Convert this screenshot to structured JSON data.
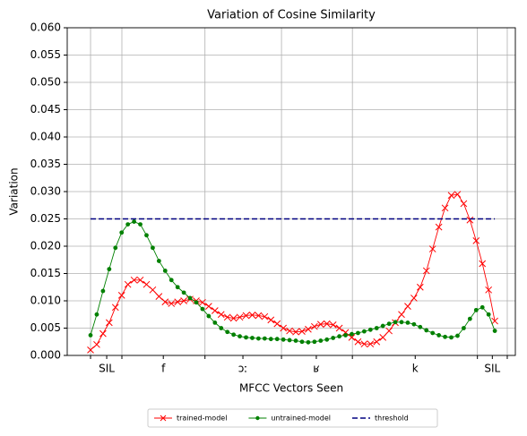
{
  "chart_data": {
    "type": "line",
    "title": "Variation of Cosine Similarity",
    "xlabel": "MFCC Vectors Seen",
    "ylabel": "Variation",
    "xlim": [
      -3.75,
      68.3
    ],
    "ylim": [
      0,
      0.06
    ],
    "xticks": [
      0,
      5.04,
      18.4,
      30.7,
      42.1,
      62.2,
      67.0
    ],
    "xlabels": [
      {
        "value": 2.6,
        "label": "SIL"
      },
      {
        "value": 11.7,
        "label": "f"
      },
      {
        "value": 24.5,
        "label": "ɔː"
      },
      {
        "value": 36.3,
        "label": "ʁ"
      },
      {
        "value": 52.2,
        "label": "k"
      },
      {
        "value": 64.6,
        "label": "SIL"
      }
    ],
    "yticks": [
      {
        "value": 0,
        "label": "0.000"
      },
      {
        "value": 0.005,
        "label": "0.005"
      },
      {
        "value": 0.01,
        "label": "0.010"
      },
      {
        "value": 0.015,
        "label": "0.015"
      },
      {
        "value": 0.02,
        "label": "0.020"
      },
      {
        "value": 0.025,
        "label": "0.025"
      },
      {
        "value": 0.03,
        "label": "0.030"
      },
      {
        "value": 0.035,
        "label": "0.035"
      },
      {
        "value": 0.04,
        "label": "0.040"
      },
      {
        "value": 0.045,
        "label": "0.045"
      },
      {
        "value": 0.05,
        "label": "0.050"
      },
      {
        "value": 0.055,
        "label": "0.055"
      },
      {
        "value": 0.06,
        "label": "0.060"
      }
    ],
    "grid": true,
    "legend": "bottom",
    "series": [
      {
        "name": "trained-model",
        "color": "#ff0000",
        "marker": "x",
        "x": [
          0,
          1,
          2,
          3,
          4,
          5,
          6,
          7,
          8,
          9,
          10,
          11,
          12,
          13,
          14,
          15,
          16,
          17,
          18,
          19,
          20,
          21,
          22,
          23,
          24,
          25,
          26,
          27,
          28,
          29,
          30,
          31,
          32,
          33,
          34,
          35,
          36,
          37,
          38,
          39,
          40,
          41,
          42,
          43,
          44,
          45,
          46,
          47,
          48,
          49,
          50,
          51,
          52,
          53,
          54,
          55,
          56,
          57,
          58,
          59,
          60,
          61,
          62,
          63,
          64,
          65
        ],
        "values": [
          0.001,
          0.002,
          0.004,
          0.006,
          0.0088,
          0.011,
          0.013,
          0.0138,
          0.0138,
          0.013,
          0.012,
          0.0108,
          0.0098,
          0.0095,
          0.0098,
          0.01,
          0.0103,
          0.01,
          0.0097,
          0.009,
          0.0082,
          0.0075,
          0.007,
          0.0068,
          0.007,
          0.0073,
          0.0074,
          0.0073,
          0.0071,
          0.0065,
          0.0058,
          0.005,
          0.0045,
          0.0043,
          0.0044,
          0.0048,
          0.0053,
          0.0057,
          0.0058,
          0.0056,
          0.005,
          0.0042,
          0.0033,
          0.0025,
          0.0021,
          0.0021,
          0.0025,
          0.0033,
          0.0045,
          0.006,
          0.0075,
          0.009,
          0.0105,
          0.0125,
          0.0155,
          0.0195,
          0.0235,
          0.027,
          0.0293,
          0.0295,
          0.0278,
          0.0248,
          0.021,
          0.0168,
          0.012,
          0.0063
        ]
      },
      {
        "name": "untrained-model",
        "color": "#008000",
        "marker": "dot",
        "x": [
          0,
          1,
          2,
          3,
          4,
          5,
          6,
          7,
          8,
          9,
          10,
          11,
          12,
          13,
          14,
          15,
          16,
          17,
          18,
          19,
          20,
          21,
          22,
          23,
          24,
          25,
          26,
          27,
          28,
          29,
          30,
          31,
          32,
          33,
          34,
          35,
          36,
          37,
          38,
          39,
          40,
          41,
          42,
          43,
          44,
          45,
          46,
          47,
          48,
          49,
          50,
          51,
          52,
          53,
          54,
          55,
          56,
          57,
          58,
          59,
          60,
          61,
          62,
          63,
          64,
          65
        ],
        "values": [
          0.0037,
          0.0075,
          0.0118,
          0.0158,
          0.0197,
          0.0225,
          0.024,
          0.0245,
          0.024,
          0.022,
          0.0197,
          0.0173,
          0.0155,
          0.0138,
          0.0125,
          0.0115,
          0.0105,
          0.0097,
          0.0085,
          0.0072,
          0.006,
          0.005,
          0.0043,
          0.0038,
          0.0035,
          0.0033,
          0.0032,
          0.0031,
          0.0031,
          0.003,
          0.003,
          0.0029,
          0.0028,
          0.0027,
          0.0025,
          0.0024,
          0.0025,
          0.0027,
          0.0029,
          0.0032,
          0.0035,
          0.0037,
          0.0039,
          0.0041,
          0.0044,
          0.0047,
          0.005,
          0.0054,
          0.0058,
          0.0061,
          0.0061,
          0.006,
          0.0057,
          0.0052,
          0.0046,
          0.0041,
          0.0037,
          0.0034,
          0.0033,
          0.0036,
          0.005,
          0.0067,
          0.0083,
          0.0088,
          0.0075,
          0.0045
        ]
      },
      {
        "name": "threshold",
        "color": "#000080",
        "marker": "dash",
        "x": [
          0,
          65
        ],
        "values": [
          0.025,
          0.025
        ]
      }
    ]
  }
}
